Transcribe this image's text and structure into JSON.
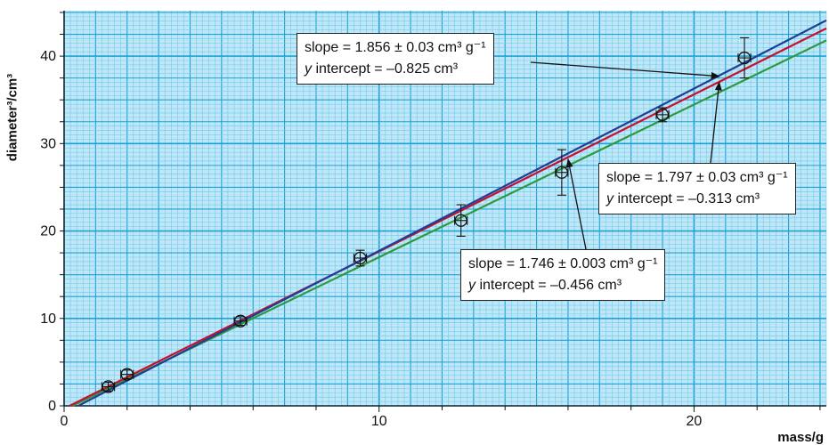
{
  "chart_data": {
    "type": "scatter",
    "xlabel": "mass/g",
    "ylabel": "diameter³/cm³",
    "xlim": [
      0,
      24.2
    ],
    "ylim": [
      0,
      45.2
    ],
    "x_ticks": [
      0,
      10,
      20
    ],
    "y_ticks": [
      0,
      10,
      20,
      30,
      40
    ],
    "grid": true,
    "points": [
      {
        "x": 1.4,
        "y": 2.2,
        "xerr": 0.2,
        "yerr": 0.5
      },
      {
        "x": 2.0,
        "y": 3.6,
        "xerr": 0.2,
        "yerr": 0.5
      },
      {
        "x": 5.6,
        "y": 9.7,
        "xerr": 0.2,
        "yerr": 0.5
      },
      {
        "x": 9.4,
        "y": 16.9,
        "xerr": 0.2,
        "yerr": 0.9
      },
      {
        "x": 12.6,
        "y": 21.2,
        "xerr": 0.2,
        "yerr": 1.8
      },
      {
        "x": 15.8,
        "y": 26.7,
        "xerr": 0.2,
        "yerr": 2.6
      },
      {
        "x": 19.0,
        "y": 33.3,
        "xerr": 0.2,
        "yerr": 0.8
      },
      {
        "x": 21.6,
        "y": 39.8,
        "xerr": 0.2,
        "yerr": 2.3
      }
    ],
    "lines": [
      {
        "slope": 1.856,
        "intercept": -0.825,
        "color": "#1f3f95"
      },
      {
        "slope": 1.797,
        "intercept": -0.313,
        "color": "#c8102e"
      },
      {
        "slope": 1.746,
        "intercept": -0.456,
        "color": "#2e9a3e"
      }
    ],
    "annotations": [
      {
        "slope_text": "slope = 1.856 ± 0.03 cm³ g⁻¹",
        "intercept_label": "y",
        "intercept_text": " intercept = –0.825 cm³",
        "target": [
          20.8,
          37.7
        ]
      },
      {
        "slope_text": "slope = 1.797 ± 0.03 cm³ g⁻¹",
        "intercept_label": "y",
        "intercept_text": " intercept = –0.313 cm³",
        "target": [
          20.8,
          37.0
        ]
      },
      {
        "slope_text": "slope = 1.746 ± 0.003 cm³ g⁻¹",
        "intercept_label": "y",
        "intercept_text": " intercept = –0.456 cm³",
        "target": [
          16.0,
          28.2
        ]
      }
    ]
  }
}
